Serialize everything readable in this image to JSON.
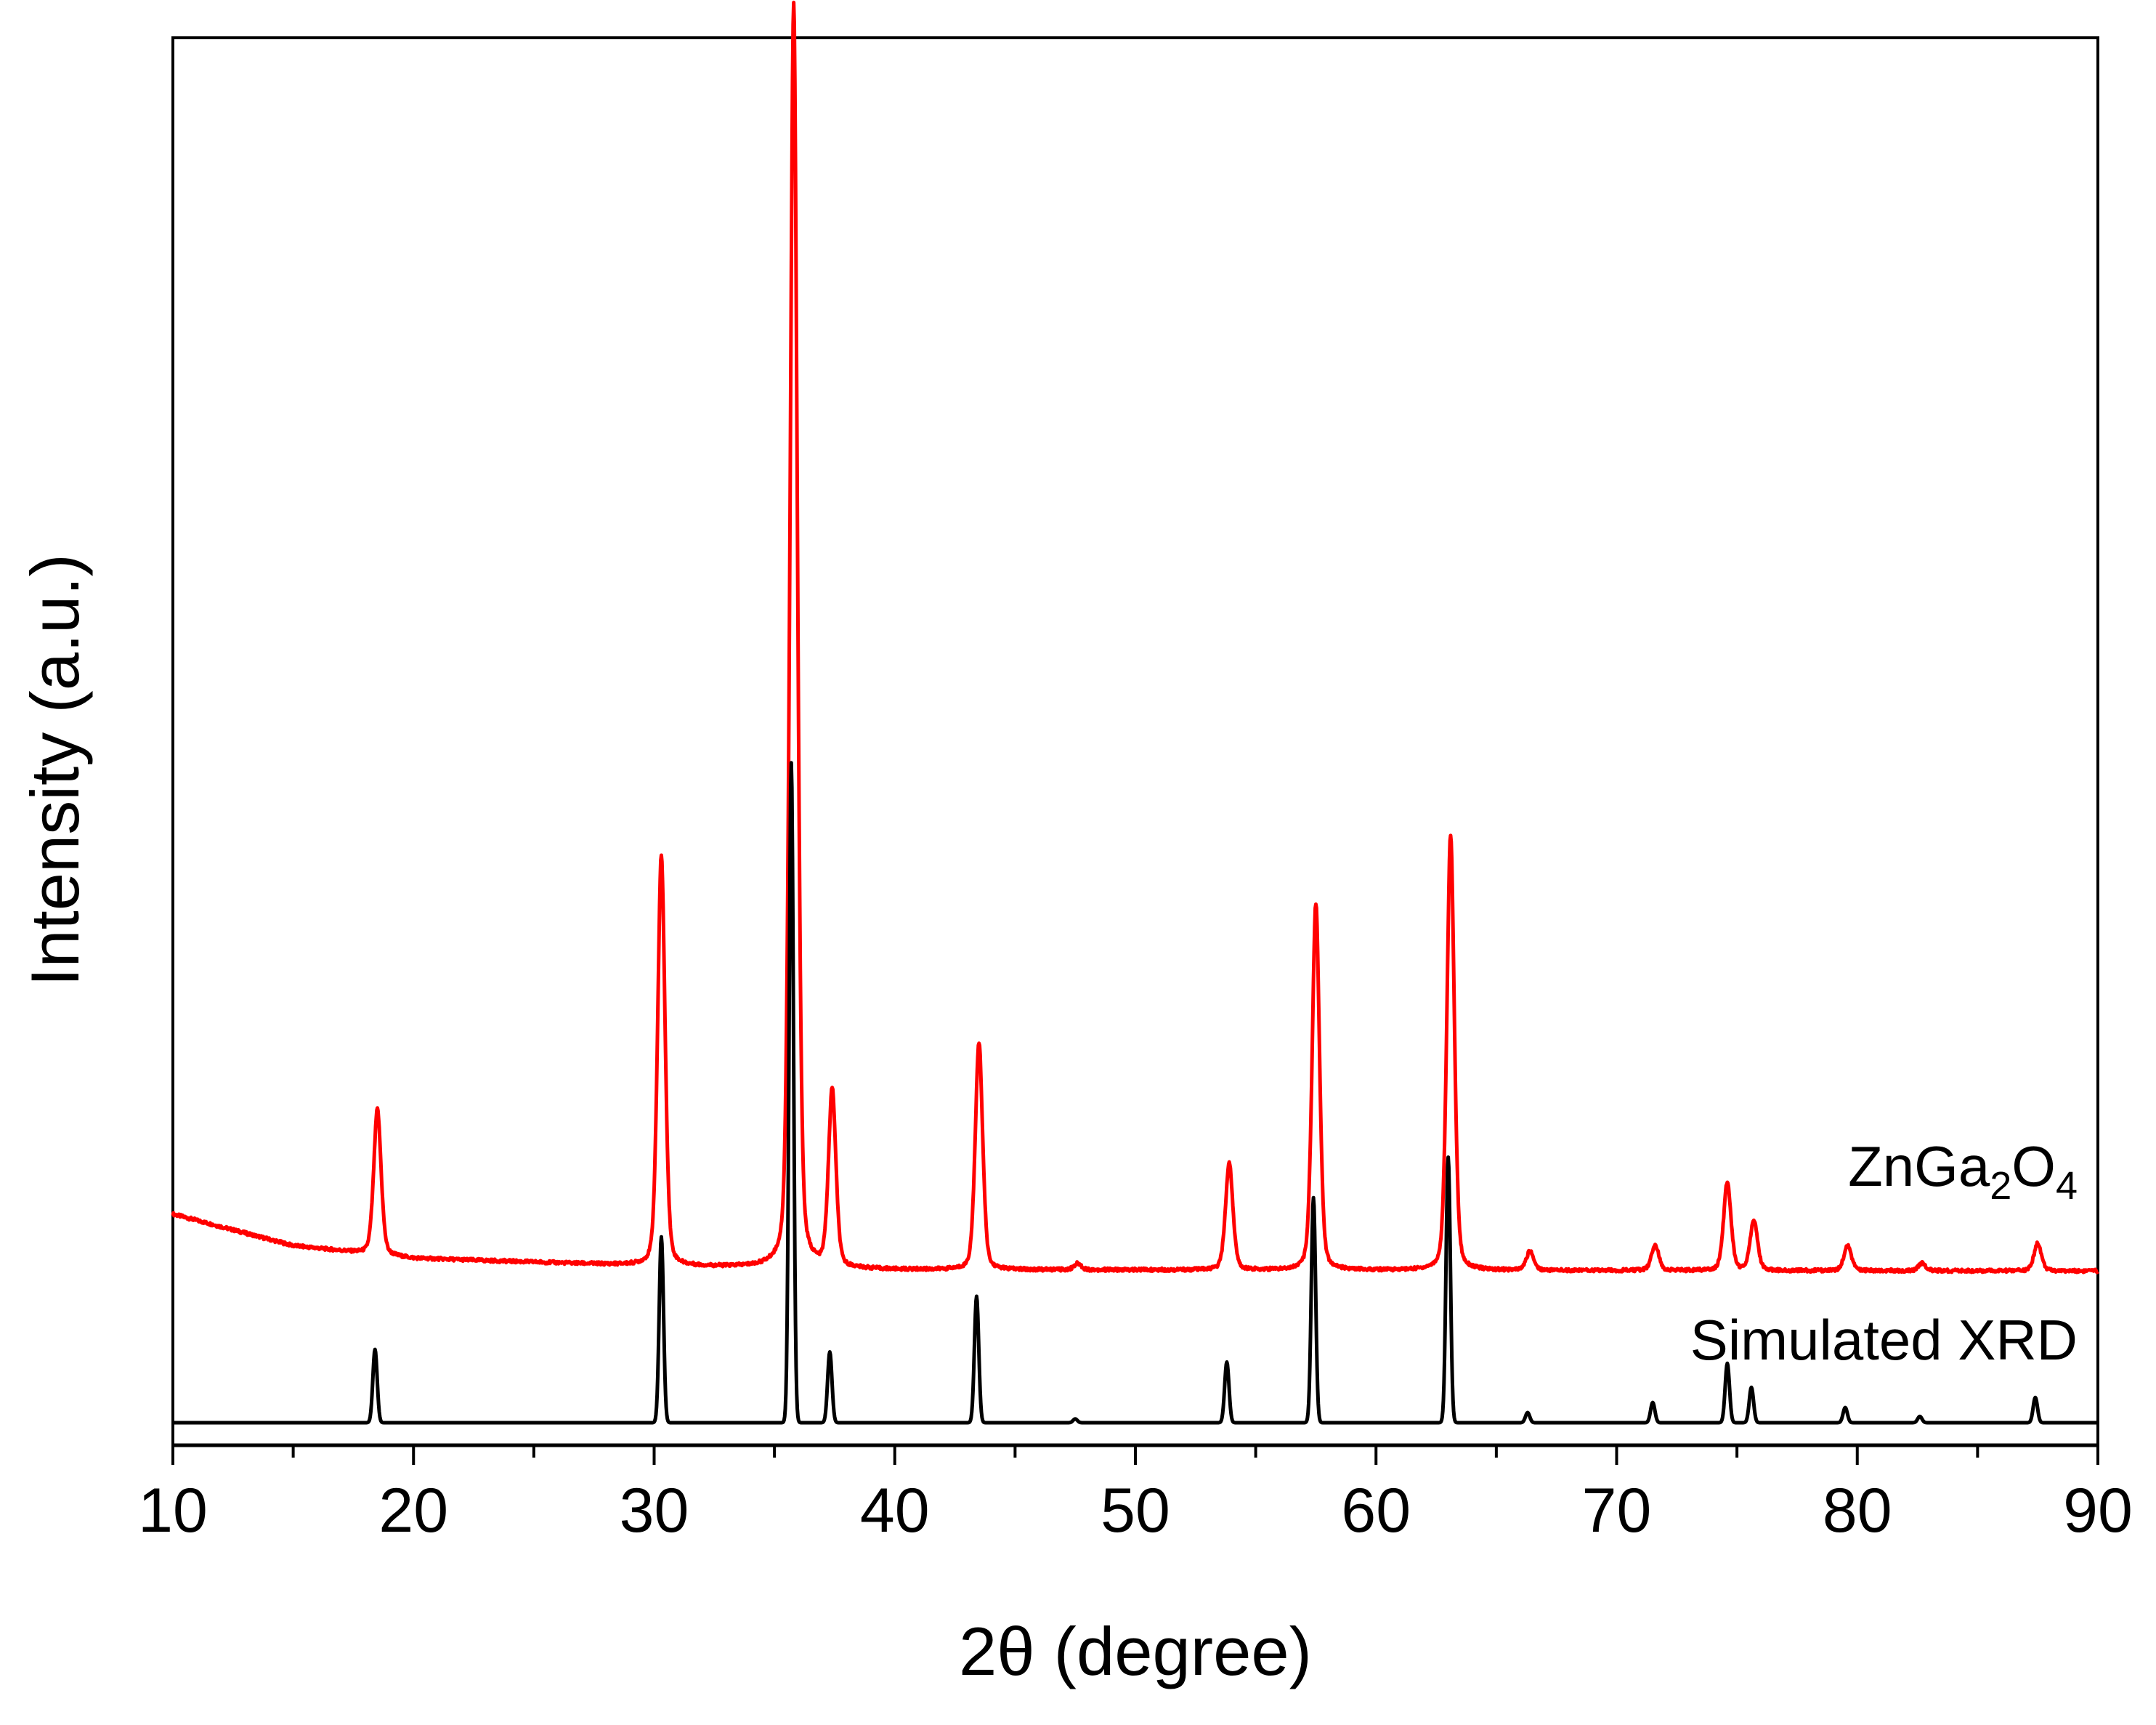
{
  "chart_data": {
    "type": "line",
    "title": "",
    "xlabel": "2θ (degree)",
    "ylabel": "Intensity (a.u.)",
    "xlim": [
      10,
      90
    ],
    "xticks": [
      10,
      20,
      30,
      40,
      50,
      60,
      70,
      80,
      90
    ],
    "x_minor_step": 5,
    "y_tick_labels": false,
    "grid": false,
    "legend": "none (series labelled inline at right)",
    "series": [
      {
        "name": "ZnGa2O4",
        "label_main": "ZnGa",
        "label_sub1": "2",
        "label_mid": "O",
        "label_sub2": "4",
        "color": "#ff0000",
        "offset": 0.12,
        "background": [
          [
            10,
            0.045
          ],
          [
            15,
            0.02
          ],
          [
            20,
            0.01
          ],
          [
            30,
            0.004
          ],
          [
            40,
            0.001
          ],
          [
            90,
            0.0
          ]
        ],
        "peaks": [
          {
            "x": 18.5,
            "y": 0.115
          },
          {
            "x": 30.3,
            "y": 0.325
          },
          {
            "x": 35.8,
            "y": 1.0
          },
          {
            "x": 37.4,
            "y": 0.14
          },
          {
            "x": 43.5,
            "y": 0.18
          },
          {
            "x": 47.6,
            "y": 0.005
          },
          {
            "x": 53.9,
            "y": 0.085
          },
          {
            "x": 57.5,
            "y": 0.29
          },
          {
            "x": 63.1,
            "y": 0.345
          },
          {
            "x": 66.4,
            "y": 0.015
          },
          {
            "x": 71.6,
            "y": 0.02
          },
          {
            "x": 74.6,
            "y": 0.07
          },
          {
            "x": 75.7,
            "y": 0.04
          },
          {
            "x": 79.6,
            "y": 0.02
          },
          {
            "x": 82.7,
            "y": 0.006
          },
          {
            "x": 87.5,
            "y": 0.022
          }
        ]
      },
      {
        "name": "Simulated XRD",
        "color": "#000000",
        "offset": 0.0,
        "peaks": [
          {
            "x": 18.4,
            "y": 0.058
          },
          {
            "x": 30.3,
            "y": 0.147
          },
          {
            "x": 35.7,
            "y": 0.522
          },
          {
            "x": 37.3,
            "y": 0.056
          },
          {
            "x": 43.4,
            "y": 0.1
          },
          {
            "x": 47.5,
            "y": 0.003
          },
          {
            "x": 53.8,
            "y": 0.048
          },
          {
            "x": 57.4,
            "y": 0.178
          },
          {
            "x": 63.0,
            "y": 0.21
          },
          {
            "x": 66.3,
            "y": 0.008
          },
          {
            "x": 71.5,
            "y": 0.016
          },
          {
            "x": 74.6,
            "y": 0.047
          },
          {
            "x": 75.6,
            "y": 0.028
          },
          {
            "x": 79.5,
            "y": 0.012
          },
          {
            "x": 82.6,
            "y": 0.005
          },
          {
            "x": 87.4,
            "y": 0.02
          }
        ]
      }
    ]
  }
}
